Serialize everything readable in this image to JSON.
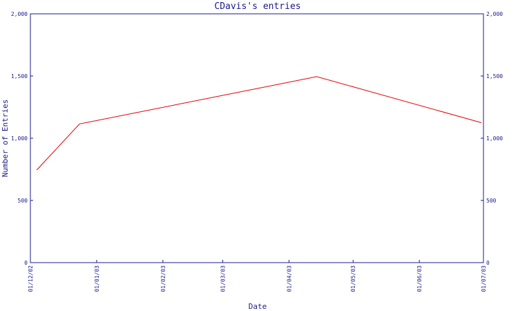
{
  "chart_data": {
    "type": "line",
    "title": "CDavis's entries",
    "xlabel": "Date",
    "ylabel": "Number of Entries",
    "ylim": [
      0,
      2000
    ],
    "xlim": [
      "2002-12-01",
      "2003-07-01"
    ],
    "y_ticks": [
      "0",
      "500",
      "1,000",
      "1,500",
      "2,000"
    ],
    "x_ticks": [
      {
        "date": "2002-12-01",
        "label": "01/12/02"
      },
      {
        "date": "2003-01-01",
        "label": "01/01/03"
      },
      {
        "date": "2003-02-01",
        "label": "01/02/03"
      },
      {
        "date": "2003-03-01",
        "label": "01/03/03"
      },
      {
        "date": "2003-04-01",
        "label": "01/04/03"
      },
      {
        "date": "2003-05-01",
        "label": "01/05/03"
      },
      {
        "date": "2003-06-01",
        "label": "01/06/03"
      },
      {
        "date": "2003-07-01",
        "label": "01/07/03"
      }
    ],
    "series": [
      {
        "color": "#e00000",
        "points": [
          {
            "x": "2002-12-04",
            "y": 745
          },
          {
            "x": "2002-12-24",
            "y": 1115
          },
          {
            "x": "2003-04-14",
            "y": 1495
          },
          {
            "x": "2003-06-30",
            "y": 1125
          }
        ]
      }
    ],
    "grid": false,
    "right_axis_mirrors_left": true,
    "colors": {
      "axis": "#1a1a8c",
      "series": "#e00000"
    }
  }
}
